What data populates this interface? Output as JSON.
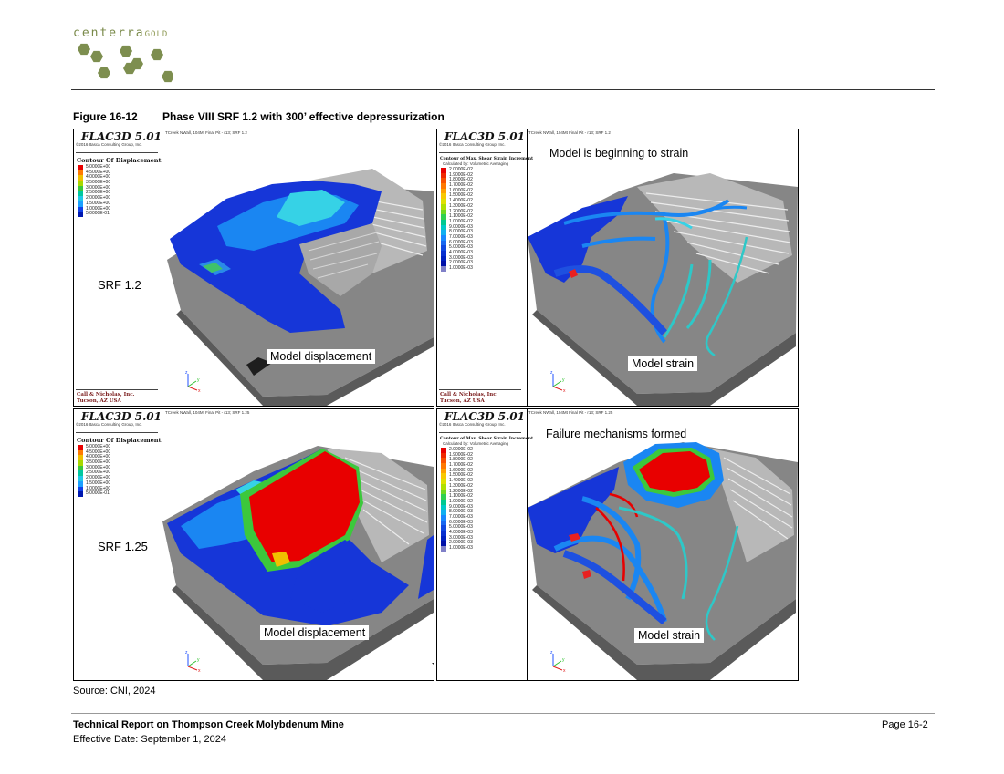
{
  "header": {
    "logo_main": "centerra",
    "logo_sub": "GOLD",
    "logo_hex_color": "#7d8e4f"
  },
  "figure": {
    "number": "Figure 16-12",
    "title": "Phase VIII SRF 1.2 with 300’ effective depressurization"
  },
  "common": {
    "software": "FLAC3D 5.01",
    "copyright": "©2016 Itasca Consulting Group, Inc.",
    "company_name": "Call & Nicholas, Inc.",
    "company_city": "Tucson, AZ USA",
    "axis_z": "z",
    "axis_y": "y",
    "axis_x": "x"
  },
  "legends": {
    "displacement": {
      "heading": "Contour Of Displacement",
      "values": [
        "5.0000E+00",
        "4.5000E+00",
        "4.0000E+00",
        "3.5000E+00",
        "3.0000E+00",
        "2.5000E+00",
        "2.0000E+00",
        "1.5000E+00",
        "1.0000E+00",
        "5.0000E-01"
      ]
    },
    "strain": {
      "heading": "Contour of Max. Shear Strain Increment",
      "subheading": "Calculated by: Volumetric Averaging",
      "values": [
        "2.0000E-02",
        "1.9000E-02",
        "1.8000E-02",
        "1.7000E-02",
        "1.6000E-02",
        "1.5000E-02",
        "1.4000E-02",
        "1.3000E-02",
        "1.2000E-02",
        "1.1000E-02",
        "1.0000E-02",
        "9.0000E-03",
        "8.0000E-03",
        "7.0000E-03",
        "6.0000E-03",
        "5.0000E-03",
        "4.0000E-03",
        "3.0000E-03",
        "2.0000E-03",
        "1.0000E-03"
      ]
    },
    "displacement_colors": [
      "#e80000",
      "#ff7a00",
      "#f0c000",
      "#a8d800",
      "#3cc83c",
      "#00c8a0",
      "#20c8e8",
      "#1aa0ff",
      "#1040e8",
      "#0018b0"
    ],
    "strain_colors": [
      "#e80000",
      "#f02800",
      "#f85000",
      "#ff7800",
      "#ffa000",
      "#f8c800",
      "#e0e000",
      "#b0e000",
      "#70d820",
      "#30d050",
      "#00c890",
      "#00c8c8",
      "#10b0f0",
      "#1888ff",
      "#1868f0",
      "#1048e0",
      "#0830d0",
      "#0020c0",
      "#0010a8",
      "#8080c8"
    ]
  },
  "panels": [
    {
      "run_title": "TCreek NWall, 104Mt Final Pit - r13; SRF 1.2",
      "srf": "SRF 1.2",
      "annotation": "Model displacement"
    },
    {
      "run_title": "TCreek NWall, 104Mt Final Pit - r13; SRF 1.2",
      "top_annotation": "Model is beginning to strain",
      "annotation": "Model strain"
    },
    {
      "run_title": "TCreek NWall, 104Mt Final Pit - r13; SRF 1.25",
      "srf": "SRF 1.25",
      "annotation": "Model displacement"
    },
    {
      "run_title": "TCreek NWall, 104Mt Final Pit - r13; SRF 1.25",
      "top_annotation": "Failure mechanisms formed",
      "annotation": "Model strain"
    }
  ],
  "source": "Source: CNI, 2024",
  "footer": {
    "title": "Technical Report on Thompson Creek Molybdenum Mine",
    "date": "Effective Date: September 1, 2024",
    "page": "Page 16-2"
  }
}
